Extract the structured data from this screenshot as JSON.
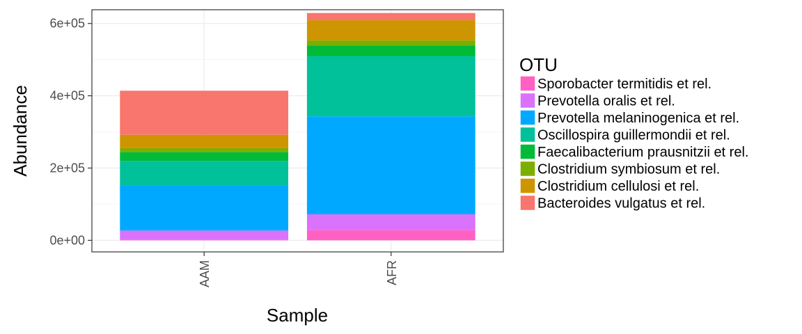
{
  "chart_data": {
    "type": "bar",
    "stacked": true,
    "categories": [
      "AAM",
      "AFR"
    ],
    "xlabel": "Sample",
    "ylabel": "Abundance",
    "ylim": [
      -32000,
      638000
    ],
    "yticks": [
      0,
      200000,
      400000,
      600000
    ],
    "ytick_labels": [
      "0e+00",
      "2e+05",
      "4e+05",
      "6e+05"
    ],
    "grid": true,
    "legend_title": "OTU",
    "legend_position": "right",
    "series": [
      {
        "name": "Sporobacter termitidis et rel.",
        "color": "#FF61C3",
        "values": [
          2000,
          28000
        ]
      },
      {
        "name": "Prevotella oralis et rel.",
        "color": "#DB72FB",
        "values": [
          25000,
          44000
        ]
      },
      {
        "name": "Prevotella melaninogenica et rel.",
        "color": "#00A9FF",
        "values": [
          125000,
          271000
        ]
      },
      {
        "name": "Oscillospira guillermondii et rel.",
        "color": "#00C19A",
        "values": [
          68000,
          167000
        ]
      },
      {
        "name": "Faecalibacterium prausnitzii et rel.",
        "color": "#00BA38",
        "values": [
          24000,
          29000
        ]
      },
      {
        "name": "Clostridium symbiosum et rel.",
        "color": "#7CAE00",
        "values": [
          11000,
          14000
        ]
      },
      {
        "name": "Clostridium cellulosi et rel.",
        "color": "#CD9600",
        "values": [
          37000,
          56000
        ]
      },
      {
        "name": "Bacteroides vulgatus et rel.",
        "color": "#F8766D",
        "values": [
          122000,
          20000
        ]
      }
    ],
    "legend_order": [
      0,
      1,
      2,
      3,
      4,
      5,
      6,
      7
    ]
  }
}
